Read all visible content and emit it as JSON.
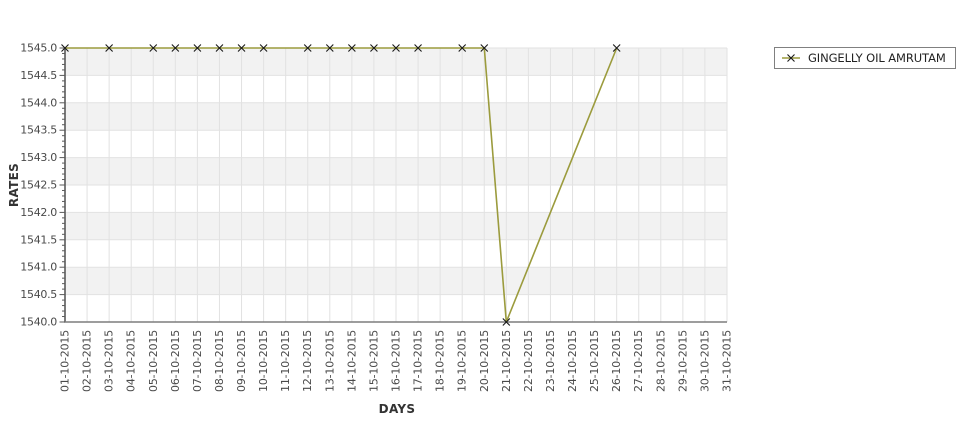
{
  "chart_data": {
    "type": "line",
    "title": "",
    "xlabel": "DAYS",
    "ylabel": "RATES",
    "x_categories": [
      "01-10-2015",
      "02-10-2015",
      "03-10-2015",
      "04-10-2015",
      "05-10-2015",
      "06-10-2015",
      "07-10-2015",
      "08-10-2015",
      "09-10-2015",
      "10-10-2015",
      "11-10-2015",
      "12-10-2015",
      "13-10-2015",
      "14-10-2015",
      "15-10-2015",
      "16-10-2015",
      "17-10-2015",
      "18-10-2015",
      "19-10-2015",
      "20-10-2015",
      "21-10-2015",
      "22-10-2015",
      "23-10-2015",
      "24-10-2015",
      "25-10-2015",
      "26-10-2015",
      "27-10-2015",
      "28-10-2015",
      "29-10-2015",
      "30-10-2015",
      "31-10-2015"
    ],
    "ylim": [
      1540.0,
      1545.0
    ],
    "y_tick_step": 0.5,
    "y_minor_tick_step": 0.1,
    "grid": true,
    "plot_bands_alternating": true,
    "legend_position": "top-right",
    "series": [
      {
        "name": "GINGELLY OIL AMRUTAM",
        "color": "#9b9b3d",
        "marker": "x",
        "marker_color": "#1a1a1a",
        "points": [
          {
            "x": "01-10-2015",
            "y": 1545.0
          },
          {
            "x": "03-10-2015",
            "y": 1545.0
          },
          {
            "x": "05-10-2015",
            "y": 1545.0
          },
          {
            "x": "06-10-2015",
            "y": 1545.0
          },
          {
            "x": "07-10-2015",
            "y": 1545.0
          },
          {
            "x": "08-10-2015",
            "y": 1545.0
          },
          {
            "x": "09-10-2015",
            "y": 1545.0
          },
          {
            "x": "10-10-2015",
            "y": 1545.0
          },
          {
            "x": "12-10-2015",
            "y": 1545.0
          },
          {
            "x": "13-10-2015",
            "y": 1545.0
          },
          {
            "x": "14-10-2015",
            "y": 1545.0
          },
          {
            "x": "15-10-2015",
            "y": 1545.0
          },
          {
            "x": "16-10-2015",
            "y": 1545.0
          },
          {
            "x": "17-10-2015",
            "y": 1545.0
          },
          {
            "x": "19-10-2015",
            "y": 1545.0
          },
          {
            "x": "20-10-2015",
            "y": 1545.0
          },
          {
            "x": "21-10-2015",
            "y": 1540.0
          },
          {
            "x": "26-10-2015",
            "y": 1545.0
          }
        ]
      }
    ]
  },
  "legend": {
    "label": "GINGELLY OIL AMRUTAM"
  },
  "colors": {
    "band": "#f2f2f2",
    "grid": "#e2e2e2",
    "axis_left": "#5a5a5a",
    "axis_bottom": "#7d7d7d",
    "tick_text": "#4a4a4a",
    "axis_title_text": "#333333",
    "legend_border": "#808080",
    "legend_text": "#222222"
  }
}
